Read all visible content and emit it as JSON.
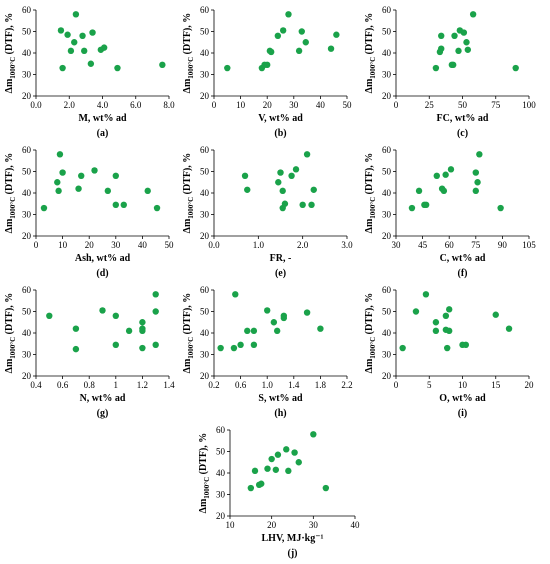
{
  "y_label": {
    "prefix": "Δm",
    "subscript": "1000°C",
    "suffix": " (DTF), %"
  },
  "chart_data": [
    {
      "id": "a",
      "type": "scatter",
      "letter": "(a)",
      "xlabel": "M, wt% ad",
      "xlim": [
        0,
        8
      ],
      "xticks": [
        0,
        2,
        4,
        6,
        8
      ],
      "xtick_labels": [
        "0.0",
        "2.0",
        "4.0",
        "6.0",
        "8.0"
      ],
      "ylim": [
        20,
        60
      ],
      "yticks": [
        20,
        30,
        40,
        50,
        60
      ],
      "color": "#1aa24a",
      "points": [
        [
          1.5,
          50.5
        ],
        [
          1.6,
          33
        ],
        [
          1.9,
          48.5
        ],
        [
          2.1,
          41
        ],
        [
          2.3,
          45
        ],
        [
          2.4,
          58
        ],
        [
          2.8,
          48
        ],
        [
          2.9,
          41
        ],
        [
          3.3,
          35
        ],
        [
          3.4,
          49.5
        ],
        [
          3.9,
          41.5
        ],
        [
          4.1,
          42.5
        ],
        [
          4.9,
          33
        ],
        [
          7.6,
          34.5
        ]
      ]
    },
    {
      "id": "b",
      "type": "scatter",
      "letter": "(b)",
      "xlabel": "V, wt% ad",
      "xlim": [
        0,
        50
      ],
      "xticks": [
        0,
        10,
        20,
        30,
        40,
        50
      ],
      "xtick_labels": [
        "0",
        "10",
        "20",
        "30",
        "40",
        "50"
      ],
      "ylim": [
        20,
        60
      ],
      "yticks": [
        20,
        30,
        40,
        50,
        60
      ],
      "color": "#1aa24a",
      "points": [
        [
          5,
          33
        ],
        [
          18,
          33
        ],
        [
          19,
          34.5
        ],
        [
          20,
          34.5
        ],
        [
          21,
          41
        ],
        [
          21.5,
          40.5
        ],
        [
          24,
          48
        ],
        [
          26,
          50.5
        ],
        [
          28,
          58
        ],
        [
          32,
          41
        ],
        [
          33,
          50
        ],
        [
          34.5,
          45
        ],
        [
          44,
          42
        ],
        [
          46,
          48.5
        ]
      ]
    },
    {
      "id": "c",
      "type": "scatter",
      "letter": "(c)",
      "xlabel": "FC, wt% ad",
      "xlim": [
        0,
        100
      ],
      "xticks": [
        0,
        25,
        50,
        75,
        100
      ],
      "xtick_labels": [
        "0",
        "25",
        "50",
        "75",
        "100"
      ],
      "ylim": [
        20,
        60
      ],
      "yticks": [
        20,
        30,
        40,
        50,
        60
      ],
      "color": "#1aa24a",
      "points": [
        [
          30,
          33
        ],
        [
          33,
          40.5
        ],
        [
          34,
          42
        ],
        [
          34,
          48
        ],
        [
          42,
          34.5
        ],
        [
          43,
          34.5
        ],
        [
          44,
          48
        ],
        [
          47,
          41
        ],
        [
          48,
          50.5
        ],
        [
          51,
          49.5
        ],
        [
          53,
          45
        ],
        [
          54,
          41.5
        ],
        [
          58,
          58
        ],
        [
          90,
          33
        ]
      ]
    },
    {
      "id": "d",
      "type": "scatter",
      "letter": "(d)",
      "xlabel": "Ash, wt% ad",
      "xlim": [
        0,
        50
      ],
      "xticks": [
        0,
        10,
        20,
        30,
        40,
        50
      ],
      "xtick_labels": [
        "0",
        "10",
        "20",
        "30",
        "40",
        "50"
      ],
      "ylim": [
        20,
        60
      ],
      "yticks": [
        20,
        30,
        40,
        50,
        60
      ],
      "color": "#1aa24a",
      "points": [
        [
          3,
          33
        ],
        [
          8,
          45
        ],
        [
          8.5,
          41
        ],
        [
          9,
          58
        ],
        [
          10,
          49.5
        ],
        [
          16,
          42
        ],
        [
          17,
          48
        ],
        [
          22,
          50.5
        ],
        [
          27,
          41
        ],
        [
          30,
          48
        ],
        [
          30,
          34.5
        ],
        [
          33,
          34.5
        ],
        [
          42,
          41
        ],
        [
          45.5,
          33
        ]
      ]
    },
    {
      "id": "e",
      "type": "scatter",
      "letter": "(e)",
      "xlabel": "FR, -",
      "xlim": [
        0,
        3
      ],
      "xticks": [
        0,
        1,
        2,
        3
      ],
      "xtick_labels": [
        "0.0",
        "1.0",
        "2.0",
        "3.0"
      ],
      "ylim": [
        20,
        60
      ],
      "yticks": [
        20,
        30,
        40,
        50,
        60
      ],
      "color": "#1aa24a",
      "points": [
        [
          0.7,
          48
        ],
        [
          0.75,
          41.5
        ],
        [
          1.45,
          45
        ],
        [
          1.5,
          49.5
        ],
        [
          1.55,
          41
        ],
        [
          1.55,
          33
        ],
        [
          1.6,
          35
        ],
        [
          1.75,
          48
        ],
        [
          1.85,
          51
        ],
        [
          2.0,
          34.5
        ],
        [
          2.1,
          58
        ],
        [
          2.2,
          34.5
        ],
        [
          2.25,
          41.5
        ]
      ]
    },
    {
      "id": "f",
      "type": "scatter",
      "letter": "(f)",
      "xlabel": "C, wt% ad",
      "xlim": [
        30,
        105
      ],
      "xticks": [
        30,
        45,
        60,
        75,
        90,
        105
      ],
      "xtick_labels": [
        "30",
        "45",
        "60",
        "75",
        "90",
        "105"
      ],
      "ylim": [
        20,
        60
      ],
      "yticks": [
        20,
        30,
        40,
        50,
        60
      ],
      "color": "#1aa24a",
      "points": [
        [
          39,
          33
        ],
        [
          43,
          41
        ],
        [
          46,
          34.5
        ],
        [
          47,
          34.5
        ],
        [
          53,
          48
        ],
        [
          56,
          42
        ],
        [
          57,
          41
        ],
        [
          58,
          48.5
        ],
        [
          61,
          51
        ],
        [
          75,
          41
        ],
        [
          75,
          49.5
        ],
        [
          76,
          45
        ],
        [
          77,
          58
        ],
        [
          89,
          33
        ]
      ]
    },
    {
      "id": "g",
      "type": "scatter",
      "letter": "(g)",
      "xlabel": "N, wt% ad",
      "xlim": [
        0.4,
        1.4
      ],
      "xticks": [
        0.4,
        0.6,
        0.8,
        1.0,
        1.2,
        1.4
      ],
      "xtick_labels": [
        "0.4",
        "0.6",
        "0.8",
        "1",
        "1.2",
        "1.4"
      ],
      "ylim": [
        20,
        60
      ],
      "yticks": [
        20,
        30,
        40,
        50,
        60
      ],
      "color": "#1aa24a",
      "points": [
        [
          0.5,
          48
        ],
        [
          0.7,
          42
        ],
        [
          0.7,
          32.5
        ],
        [
          0.9,
          50.5
        ],
        [
          1.0,
          48
        ],
        [
          1.0,
          34.5
        ],
        [
          1.1,
          41
        ],
        [
          1.2,
          45
        ],
        [
          1.2,
          42
        ],
        [
          1.2,
          41
        ],
        [
          1.2,
          33
        ],
        [
          1.3,
          58
        ],
        [
          1.3,
          50
        ],
        [
          1.3,
          34.5
        ]
      ]
    },
    {
      "id": "h",
      "type": "scatter",
      "letter": "(h)",
      "xlabel": "S, wt% ad",
      "xlim": [
        0.2,
        2.2
      ],
      "xticks": [
        0.2,
        0.6,
        1.0,
        1.4,
        1.8,
        2.2
      ],
      "xtick_labels": [
        "0.2",
        "0.6",
        "1.0",
        "1.4",
        "1.8",
        "2.2"
      ],
      "ylim": [
        20,
        60
      ],
      "yticks": [
        20,
        30,
        40,
        50,
        60
      ],
      "color": "#1aa24a",
      "points": [
        [
          0.3,
          33
        ],
        [
          0.5,
          33
        ],
        [
          0.52,
          58
        ],
        [
          0.6,
          34.5
        ],
        [
          0.7,
          41
        ],
        [
          0.8,
          41
        ],
        [
          0.8,
          34.5
        ],
        [
          1.0,
          50.5
        ],
        [
          1.1,
          45
        ],
        [
          1.15,
          41
        ],
        [
          1.25,
          48
        ],
        [
          1.25,
          47
        ],
        [
          1.6,
          49.5
        ],
        [
          1.8,
          42
        ]
      ]
    },
    {
      "id": "i",
      "type": "scatter",
      "letter": "(i)",
      "xlabel": "O, wt% ad",
      "xlim": [
        0,
        20
      ],
      "xticks": [
        0,
        5,
        10,
        15,
        20
      ],
      "xtick_labels": [
        "0",
        "5",
        "10",
        "15",
        "20"
      ],
      "ylim": [
        20,
        60
      ],
      "yticks": [
        20,
        30,
        40,
        50,
        60
      ],
      "color": "#1aa24a",
      "points": [
        [
          1,
          33
        ],
        [
          3,
          50
        ],
        [
          4.5,
          58
        ],
        [
          6,
          45
        ],
        [
          6,
          41
        ],
        [
          7.5,
          48
        ],
        [
          7.5,
          41.5
        ],
        [
          7.7,
          33
        ],
        [
          8,
          51
        ],
        [
          8,
          41
        ],
        [
          10,
          34.5
        ],
        [
          10.5,
          34.5
        ],
        [
          15,
          48.5
        ],
        [
          17,
          42
        ]
      ]
    },
    {
      "id": "j",
      "type": "scatter",
      "letter": "(j)",
      "xlabel": "LHV, MJ·kg⁻¹",
      "xlim": [
        10,
        40
      ],
      "xticks": [
        10,
        20,
        30,
        40
      ],
      "xtick_labels": [
        "10",
        "20",
        "30",
        "40"
      ],
      "ylim": [
        20,
        60
      ],
      "yticks": [
        20,
        30,
        40,
        50,
        60
      ],
      "color": "#1aa24a",
      "points": [
        [
          15,
          33
        ],
        [
          16,
          41
        ],
        [
          17,
          34.5
        ],
        [
          17.5,
          35
        ],
        [
          19,
          42
        ],
        [
          20,
          46.5
        ],
        [
          21,
          41.5
        ],
        [
          21.5,
          48.5
        ],
        [
          23.5,
          51
        ],
        [
          24,
          41
        ],
        [
          25.5,
          49.5
        ],
        [
          26.5,
          45
        ],
        [
          30,
          58
        ],
        [
          33,
          33
        ]
      ]
    }
  ]
}
